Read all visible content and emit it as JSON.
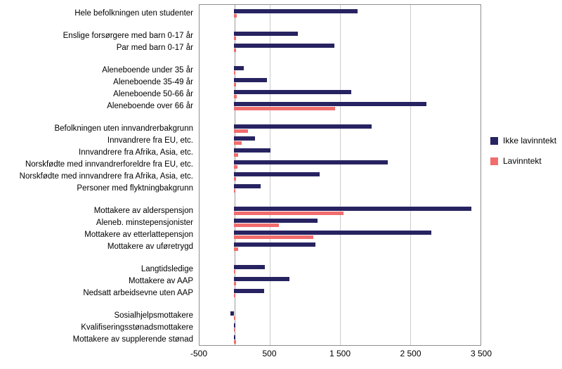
{
  "legend": {
    "items": [
      {
        "label": "Ikke lavinntekt",
        "color": "#272361"
      },
      {
        "label": "Lavinntekt",
        "color": "#f16d6d"
      }
    ]
  },
  "chart_data": {
    "type": "bar",
    "orientation": "horizontal",
    "title": "",
    "xlabel": "",
    "ylabel": "",
    "xlim": [
      -500,
      3500
    ],
    "colors": [
      "#272361",
      "#f16d6d"
    ],
    "series_names": [
      "Ikke lavinntekt",
      "Lavinntekt"
    ],
    "gridline_values": [
      500,
      1500,
      2500
    ],
    "ticks": [
      {
        "value": -500,
        "label": "-500"
      },
      {
        "value": 500,
        "label": "500"
      },
      {
        "value": 1500,
        "label": "1 500"
      },
      {
        "value": 2500,
        "label": "2 500"
      },
      {
        "value": 3500,
        "label": "3 500"
      }
    ],
    "groups": [
      {
        "categories": [
          {
            "label": "Hele befolkningen uten studenter",
            "values": [
              1750,
              40
            ]
          }
        ]
      },
      {
        "categories": [
          {
            "label": "Enslige forsørgere med barn 0-17 år",
            "values": [
              900,
              30
            ]
          },
          {
            "label": "Par med barn 0-17 år",
            "values": [
              1420,
              30
            ]
          }
        ]
      },
      {
        "categories": [
          {
            "label": "Aleneboende under 35 år",
            "values": [
              140,
              20
            ]
          },
          {
            "label": "Aleneboende 35-49 år",
            "values": [
              470,
              30
            ]
          },
          {
            "label": "Aleneboende 50-66 år",
            "values": [
              1660,
              40
            ]
          },
          {
            "label": "Aleneboende over 66 år",
            "values": [
              2720,
              1430
            ]
          }
        ]
      },
      {
        "categories": [
          {
            "label": "Befolkningen uten innvandrerbakgrunn",
            "values": [
              1950,
              200
            ]
          },
          {
            "label": "Innvandrere fra EU, etc.",
            "values": [
              300,
              110
            ]
          },
          {
            "label": "Innvandrere fra Afrika, Asia, etc.",
            "values": [
              510,
              60
            ]
          },
          {
            "label": "Norskfødte med innvandrerforeldre fra EU, etc.",
            "values": [
              2180,
              50
            ]
          },
          {
            "label": "Norskfødte med innvandrere fra Afrika, Asia, etc.",
            "values": [
              1210,
              30
            ]
          },
          {
            "label": "Personer med flyktningbakgrunn",
            "values": [
              380,
              20
            ]
          }
        ]
      },
      {
        "categories": [
          {
            "label": "Mottakere av alderspensjon",
            "values": [
              3360,
              1550
            ]
          },
          {
            "label": "Aleneb. minstepensjonister",
            "values": [
              1180,
              630
            ]
          },
          {
            "label": "Mottakere av etterlattepensjon",
            "values": [
              2790,
              1120
            ]
          },
          {
            "label": "Mottakere av uføretrygd",
            "values": [
              1150,
              60
            ]
          }
        ]
      },
      {
        "categories": [
          {
            "label": "Langtidsledige",
            "values": [
              440,
              20
            ]
          },
          {
            "label": "Mottakere av AAP",
            "values": [
              780,
              30
            ]
          },
          {
            "label": "Nedsatt arbeidsevne uten AAP",
            "values": [
              430,
              15
            ]
          }
        ]
      },
      {
        "categories": [
          {
            "label": "Sosialhjelpsmottakere",
            "values": [
              -50,
              15
            ]
          },
          {
            "label": "Kvalifiseringsstønadsmottakere",
            "values": [
              15,
              10
            ]
          },
          {
            "label": "Mottakere av supplerende stønad",
            "values": [
              15,
              30
            ]
          }
        ]
      }
    ]
  }
}
